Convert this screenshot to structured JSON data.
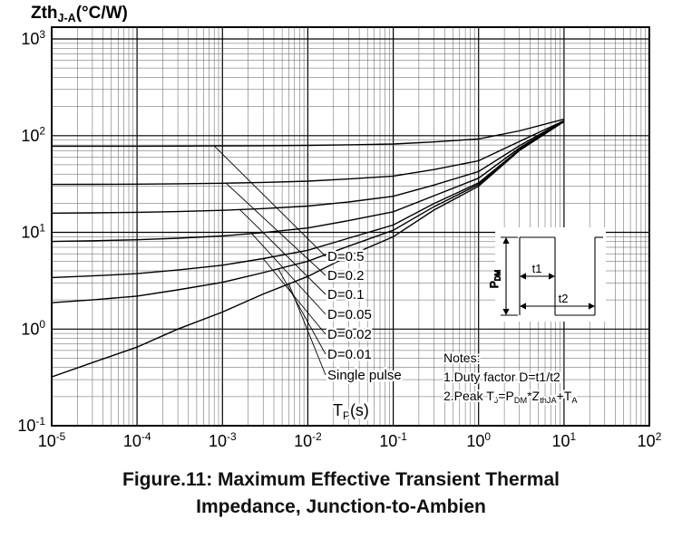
{
  "caption": {
    "line1": "Figure.11: Maximum Effective Transient Thermal",
    "line2": "Impedance, Junction-to-Ambien"
  },
  "chart_data": {
    "type": "line",
    "title": "ZthJ-A(°C/W)",
    "title_segments": [
      {
        "t": "Zth"
      },
      {
        "s": "J-A"
      },
      {
        "t": "(°C/W)"
      }
    ],
    "xlabel": "TP(s)",
    "xlabel_segments": [
      {
        "t": "T"
      },
      {
        "s": "P"
      },
      {
        "t": "(s)"
      }
    ],
    "x_scale": "log",
    "y_scale": "log",
    "grid": "on",
    "legend": "inline-labels-with-leader-lines",
    "xlim": [
      1e-05,
      100
    ],
    "ylim": [
      0.1,
      1000
    ],
    "x_tick_exponents": [
      -5,
      -4,
      -3,
      -2,
      -1,
      0,
      1,
      2
    ],
    "y_tick_exponents": [
      -1,
      0,
      1,
      2,
      3
    ],
    "x": [
      1e-05,
      3e-05,
      0.0001,
      0.0003,
      0.001,
      0.003,
      0.01,
      0.03,
      0.1,
      0.3,
      1,
      3,
      10
    ],
    "series": [
      {
        "name": "D=0.5",
        "values": [
          77.7,
          77.7,
          77.8,
          78.0,
          78.3,
          78.7,
          79.3,
          80.4,
          82.0,
          86.0,
          92.5,
          112,
          148
        ]
      },
      {
        "name": "D=0.2",
        "values": [
          31.3,
          31.4,
          31.5,
          31.8,
          32.2,
          32.8,
          33.8,
          35.6,
          38.2,
          44.6,
          55.0,
          87.0,
          143
        ]
      },
      {
        "name": "D=0.1",
        "values": [
          15.8,
          15.9,
          16.1,
          16.4,
          16.9,
          17.6,
          18.7,
          20.6,
          23.6,
          30.8,
          42.5,
          78.5,
          142
        ]
      },
      {
        "name": "D=0.05",
        "values": [
          8.05,
          8.18,
          8.37,
          8.7,
          9.18,
          9.94,
          11.1,
          13.2,
          16.3,
          23.9,
          36.3,
          74.3,
          141
        ]
      },
      {
        "name": "D=0.02",
        "values": [
          3.41,
          3.54,
          3.74,
          4.08,
          4.57,
          5.35,
          6.53,
          8.69,
          11.9,
          19.8,
          32.5,
          71.7,
          140
        ]
      },
      {
        "name": "D=0.01",
        "values": [
          1.87,
          2.0,
          2.19,
          2.54,
          3.04,
          3.83,
          5.02,
          7.19,
          10.5,
          18.4,
          31.3,
          70.9,
          140
        ]
      },
      {
        "name": "Single pulse",
        "values": [
          0.32,
          0.45,
          0.65,
          1.0,
          1.5,
          2.3,
          3.5,
          5.7,
          9.0,
          17.0,
          30.0,
          70.0,
          140
        ]
      }
    ],
    "notes": {
      "heading": "Notes:",
      "line1": "1.Duty factor D=t1/t2",
      "line2_segments": [
        {
          "t": "2.Peak T"
        },
        {
          "s": "J"
        },
        {
          "t": "=P"
        },
        {
          "s": "DM"
        },
        {
          "t": "*Z"
        },
        {
          "s": "thJA"
        },
        {
          "t": "+T"
        },
        {
          "s": "A"
        }
      ]
    },
    "inset": {
      "pdm_segments": [
        {
          "t": "P"
        },
        {
          "s": "DM"
        }
      ],
      "t1_label": "t1",
      "t2_label": "t2"
    }
  }
}
